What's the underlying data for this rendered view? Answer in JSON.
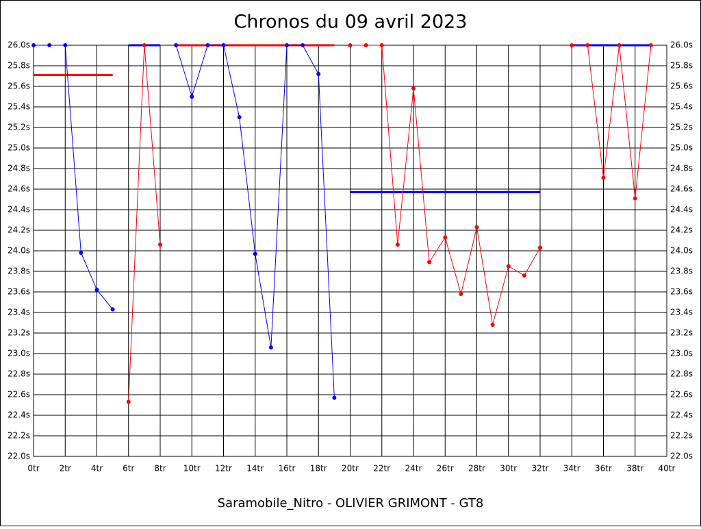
{
  "chart_data": {
    "type": "line",
    "title": "Chronos du 09 avril 2023",
    "x_label": "Saramobile_Nitro - OLIVIER GRIMONT - GT8",
    "x": [
      0,
      1,
      2,
      3,
      4,
      5,
      6,
      7,
      8,
      9,
      10,
      11,
      12,
      13,
      14,
      15,
      16,
      17,
      18,
      19,
      20,
      21,
      22,
      23,
      24,
      25,
      26,
      27,
      28,
      29,
      30,
      31,
      32,
      33,
      34,
      35,
      36,
      37,
      38,
      39
    ],
    "series": [
      {
        "color": "#0000ff",
        "values": [
          26.0,
          26.0,
          26.0,
          23.98,
          23.62,
          23.43,
          null,
          null,
          null,
          26.0,
          25.5,
          26.0,
          26.0,
          25.3,
          23.97,
          23.06,
          26.0,
          26.0,
          25.72,
          22.57,
          null,
          null,
          null,
          null,
          null,
          null,
          null,
          null,
          null,
          null,
          null,
          null,
          null,
          null,
          null,
          null,
          null,
          null,
          null,
          null
        ]
      },
      {
        "color": "#ff0000",
        "values": [
          null,
          null,
          null,
          null,
          null,
          null,
          22.53,
          26.0,
          24.06,
          null,
          null,
          null,
          null,
          null,
          null,
          null,
          null,
          null,
          null,
          null,
          26.0,
          26.0,
          26.0,
          24.06,
          25.58,
          23.89,
          24.13,
          23.58,
          24.23,
          23.28,
          23.85,
          23.76,
          24.03,
          null,
          26.0,
          26.0,
          24.71,
          26.0,
          24.51,
          26.0
        ]
      }
    ],
    "levels": [
      {
        "color": "#ff0000",
        "x": [
          0,
          5
        ],
        "value": 25.71
      },
      {
        "color": "#0000ff",
        "x": [
          6,
          8
        ],
        "value": 26.0
      },
      {
        "color": "#ff0000",
        "x": [
          9,
          19
        ],
        "value": 26.0
      },
      {
        "color": "#0000ff",
        "x": [
          20,
          32
        ],
        "value": 24.57
      },
      {
        "color": "#0000ff",
        "x": [
          34,
          39
        ],
        "value": 26.0
      }
    ],
    "xlim": [
      0,
      40
    ],
    "xticks": [
      {
        "value": 0,
        "label": "0tr"
      },
      {
        "value": 2,
        "label": "2tr"
      },
      {
        "value": 4,
        "label": "4tr"
      },
      {
        "value": 6,
        "label": "6tr"
      },
      {
        "value": 8,
        "label": "8tr"
      },
      {
        "value": 10,
        "label": "10tr"
      },
      {
        "value": 12,
        "label": "12tr"
      },
      {
        "value": 14,
        "label": "14tr"
      },
      {
        "value": 16,
        "label": "16tr"
      },
      {
        "value": 18,
        "label": "18tr"
      },
      {
        "value": 20,
        "label": "20tr"
      },
      {
        "value": 22,
        "label": "22tr"
      },
      {
        "value": 24,
        "label": "24tr"
      },
      {
        "value": 26,
        "label": "26tr"
      },
      {
        "value": 28,
        "label": "28tr"
      },
      {
        "value": 30,
        "label": "30tr"
      },
      {
        "value": 32,
        "label": "32tr"
      },
      {
        "value": 34,
        "label": "34tr"
      },
      {
        "value": 36,
        "label": "36tr"
      },
      {
        "value": 38,
        "label": "38tr"
      },
      {
        "value": 40,
        "label": "40tr"
      }
    ],
    "ylim": [
      22.0,
      26.0
    ],
    "yticks": [
      {
        "value": 22.0,
        "label": "22.0s"
      },
      {
        "value": 22.2,
        "label": "22.2s"
      },
      {
        "value": 22.4,
        "label": "22.4s"
      },
      {
        "value": 22.6,
        "label": "22.6s"
      },
      {
        "value": 22.8,
        "label": "22.8s"
      },
      {
        "value": 23.0,
        "label": "23.0s"
      },
      {
        "value": 23.2,
        "label": "23.2s"
      },
      {
        "value": 23.4,
        "label": "23.4s"
      },
      {
        "value": 23.6,
        "label": "23.6s"
      },
      {
        "value": 23.8,
        "label": "23.8s"
      },
      {
        "value": 24.0,
        "label": "24.0s"
      },
      {
        "value": 24.2,
        "label": "24.2s"
      },
      {
        "value": 24.4,
        "label": "24.4s"
      },
      {
        "value": 24.6,
        "label": "24.6s"
      },
      {
        "value": 24.8,
        "label": "24.8s"
      },
      {
        "value": 25.0,
        "label": "25.0s"
      },
      {
        "value": 25.2,
        "label": "25.2s"
      },
      {
        "value": 25.4,
        "label": "25.4s"
      },
      {
        "value": 25.6,
        "label": "25.6s"
      },
      {
        "value": 25.8,
        "label": "25.8s"
      },
      {
        "value": 26.0,
        "label": "26.0s"
      }
    ],
    "grid": true
  }
}
